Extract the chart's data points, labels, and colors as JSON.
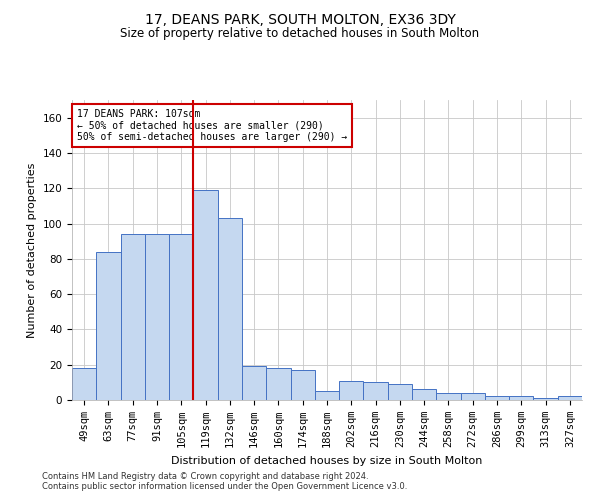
{
  "title1": "17, DEANS PARK, SOUTH MOLTON, EX36 3DY",
  "title2": "Size of property relative to detached houses in South Molton",
  "xlabel": "Distribution of detached houses by size in South Molton",
  "ylabel": "Number of detached properties",
  "footnote1": "Contains HM Land Registry data © Crown copyright and database right 2024.",
  "footnote2": "Contains public sector information licensed under the Open Government Licence v3.0.",
  "annotation_line1": "17 DEANS PARK: 107sqm",
  "annotation_line2": "← 50% of detached houses are smaller (290)",
  "annotation_line3": "50% of semi-detached houses are larger (290) →",
  "categories": [
    "49sqm",
    "63sqm",
    "77sqm",
    "91sqm",
    "105sqm",
    "119sqm",
    "132sqm",
    "146sqm",
    "160sqm",
    "174sqm",
    "188sqm",
    "202sqm",
    "216sqm",
    "230sqm",
    "244sqm",
    "258sqm",
    "272sqm",
    "286sqm",
    "299sqm",
    "313sqm",
    "327sqm"
  ],
  "values": [
    18,
    84,
    94,
    94,
    94,
    119,
    103,
    19,
    18,
    17,
    5,
    11,
    10,
    9,
    6,
    4,
    4,
    2,
    2,
    1,
    2
  ],
  "bar_color": "#c5d8f0",
  "bar_edge_color": "#4472c4",
  "vline_color": "#cc0000",
  "vline_x": 4.5,
  "ylim": [
    0,
    170
  ],
  "yticks": [
    0,
    20,
    40,
    60,
    80,
    100,
    120,
    140,
    160
  ],
  "annotation_box_color": "#cc0000",
  "grid_color": "#c8c8c8",
  "bg_color": "#ffffff",
  "title1_fontsize": 10,
  "title2_fontsize": 8.5,
  "xlabel_fontsize": 8,
  "ylabel_fontsize": 8,
  "tick_fontsize": 7.5,
  "footnote_fontsize": 6
}
